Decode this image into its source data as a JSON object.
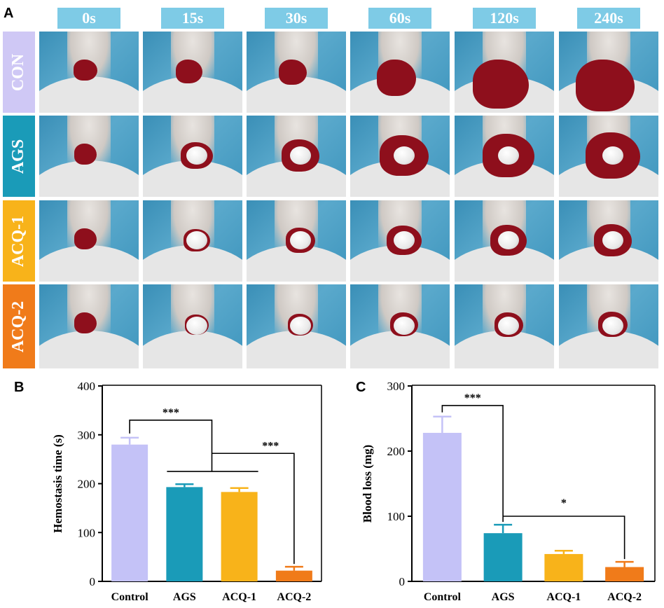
{
  "panels": {
    "a": "A",
    "b": "B",
    "c": "C"
  },
  "time_points": [
    "0s",
    "15s",
    "30s",
    "60s",
    "120s",
    "240s"
  ],
  "groups": [
    {
      "label": "CON",
      "color": "#cfc8f5"
    },
    {
      "label": "AGS",
      "color": "#1a9bb8"
    },
    {
      "label": "ACQ-1",
      "color": "#f8b31a"
    },
    {
      "label": "ACQ-2",
      "color": "#f07b1a"
    }
  ],
  "chart_data": [
    {
      "type": "bar",
      "panel": "B",
      "categories": [
        "Control",
        "AGS",
        "ACQ-1",
        "ACQ-2"
      ],
      "values": [
        280,
        193,
        183,
        22
      ],
      "errors": [
        14,
        6,
        8,
        8
      ],
      "colors": [
        "#c4c2f7",
        "#1a9bb8",
        "#f8b31a",
        "#f07b1a"
      ],
      "ylabel": "Hemostasis time (s)",
      "xlabel": "",
      "ylim": [
        0,
        400
      ],
      "yticks": [
        0,
        100,
        200,
        300,
        400
      ],
      "significance": [
        "***",
        "***"
      ]
    },
    {
      "type": "bar",
      "panel": "C",
      "categories": [
        "Control",
        "AGS",
        "ACQ-1",
        "ACQ-2"
      ],
      "values": [
        228,
        74,
        42,
        22
      ],
      "errors": [
        25,
        13,
        5,
        8
      ],
      "colors": [
        "#c4c2f7",
        "#1a9bb8",
        "#f8b31a",
        "#f07b1a"
      ],
      "ylabel": "Blood loss (mg)",
      "xlabel": "",
      "ylim": [
        0,
        300
      ],
      "yticks": [
        0,
        100,
        200,
        300
      ],
      "significance": [
        "***",
        "*"
      ]
    }
  ]
}
